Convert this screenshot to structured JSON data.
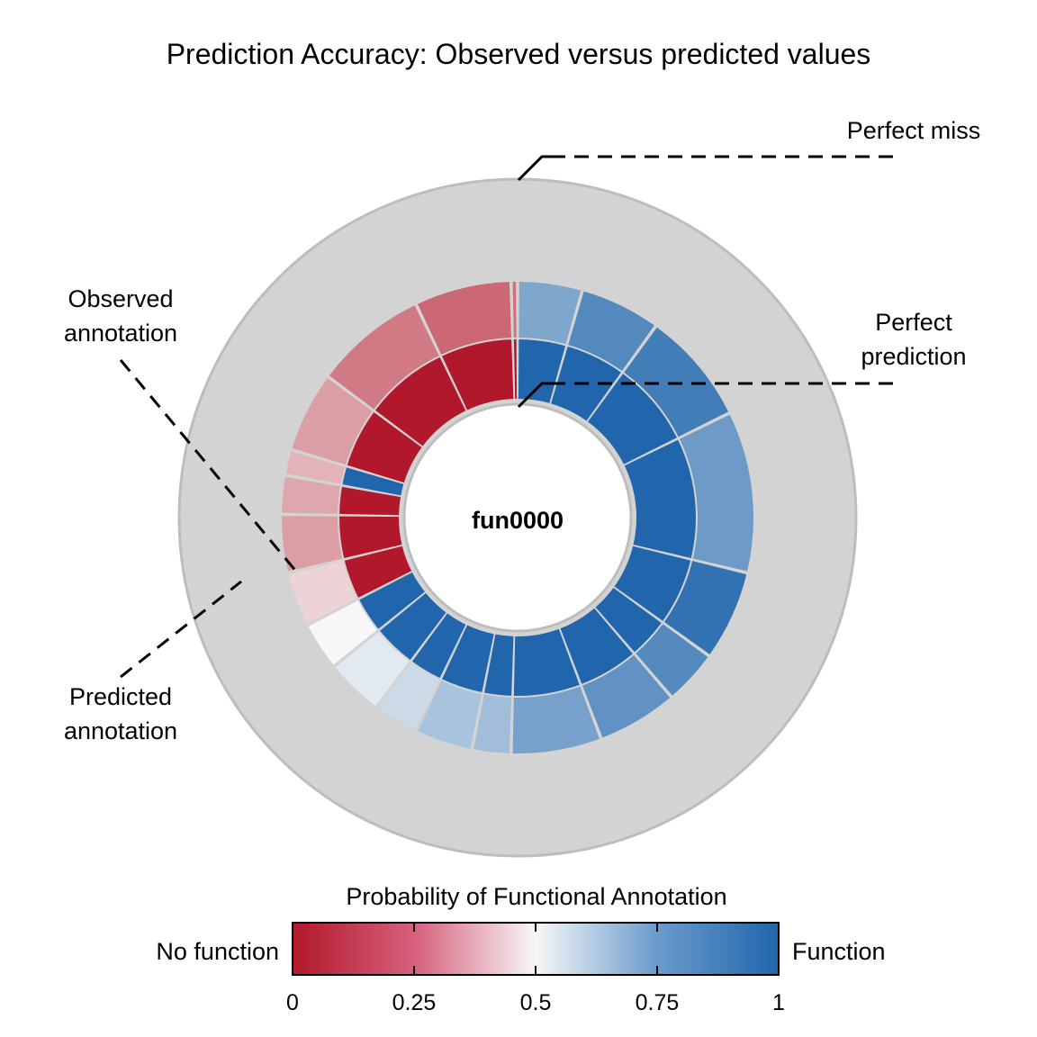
{
  "chart_data": {
    "type": "sunburst",
    "title": "Prediction Accuracy: Observed versus predicted values",
    "center_label": "fun0000",
    "annotations": {
      "perfect_miss": "Perfect miss",
      "perfect_prediction_1": "Perfect",
      "perfect_prediction_2": "prediction",
      "observed_1": "Observed",
      "observed_2": "annotation",
      "predicted_1": "Predicted",
      "predicted_2": "annotation"
    },
    "colorbar": {
      "title": "Probability of Functional Annotation",
      "left_label": "No function",
      "right_label": "Function",
      "ticks": [
        "0",
        "0.25",
        "0.5",
        "0.75",
        "1"
      ],
      "tick_values": [
        0,
        0.25,
        0.5,
        0.75,
        1
      ],
      "colors": [
        "#b2182b",
        "#f7f7f7",
        "#2166ac"
      ]
    },
    "segments": [
      {
        "start": 0,
        "end": 20,
        "predicted": 0.78,
        "observed": 1
      },
      {
        "start": 20,
        "end": 45,
        "predicted": 0.88,
        "observed": 1
      },
      {
        "start": 45,
        "end": 80,
        "predicted": 0.92,
        "observed": 1
      },
      {
        "start": 80,
        "end": 130,
        "predicted": 0.82,
        "observed": 1
      },
      {
        "start": 130,
        "end": 158,
        "predicted": 0.96,
        "observed": 1
      },
      {
        "start": 158,
        "end": 175,
        "predicted": 0.88,
        "observed": 1
      },
      {
        "start": 175,
        "end": 200,
        "predicted": 0.85,
        "observed": 1
      },
      {
        "start": 200,
        "end": 228,
        "predicted": 0.8,
        "observed": 1
      },
      {
        "start": 228,
        "end": 240,
        "predicted": 0.7,
        "observed": 1
      },
      {
        "start": 240,
        "end": 258,
        "predicted": 0.68,
        "observed": 1
      },
      {
        "start": 258,
        "end": 272,
        "predicted": 0.6,
        "observed": 1
      },
      {
        "start": 272,
        "end": 290,
        "predicted": 0.55,
        "observed": 1
      },
      {
        "start": 290,
        "end": 305,
        "predicted": 0.5,
        "observed": 1
      },
      {
        "start": 305,
        "end": 322,
        "predicted": 0.42,
        "observed": 0
      },
      {
        "start": 322,
        "end": 340,
        "predicted": 0.3,
        "observed": 0
      },
      {
        "start": 340,
        "end": 352,
        "predicted": 0.32,
        "observed": 0
      },
      {
        "start": 352,
        "end": 360,
        "predicted": 0.35,
        "observed": 1
      },
      {
        "start": 360,
        "end": 385,
        "predicted": 0.3,
        "observed": 0
      },
      {
        "start": 385,
        "end": 420,
        "predicted": 0.22,
        "observed": 0
      },
      {
        "start": 420,
        "end": 450,
        "predicted": 0.18,
        "observed": 0
      },
      {
        "start": 450,
        "end": 452,
        "predicted": 0.2,
        "observed": 0
      }
    ]
  }
}
